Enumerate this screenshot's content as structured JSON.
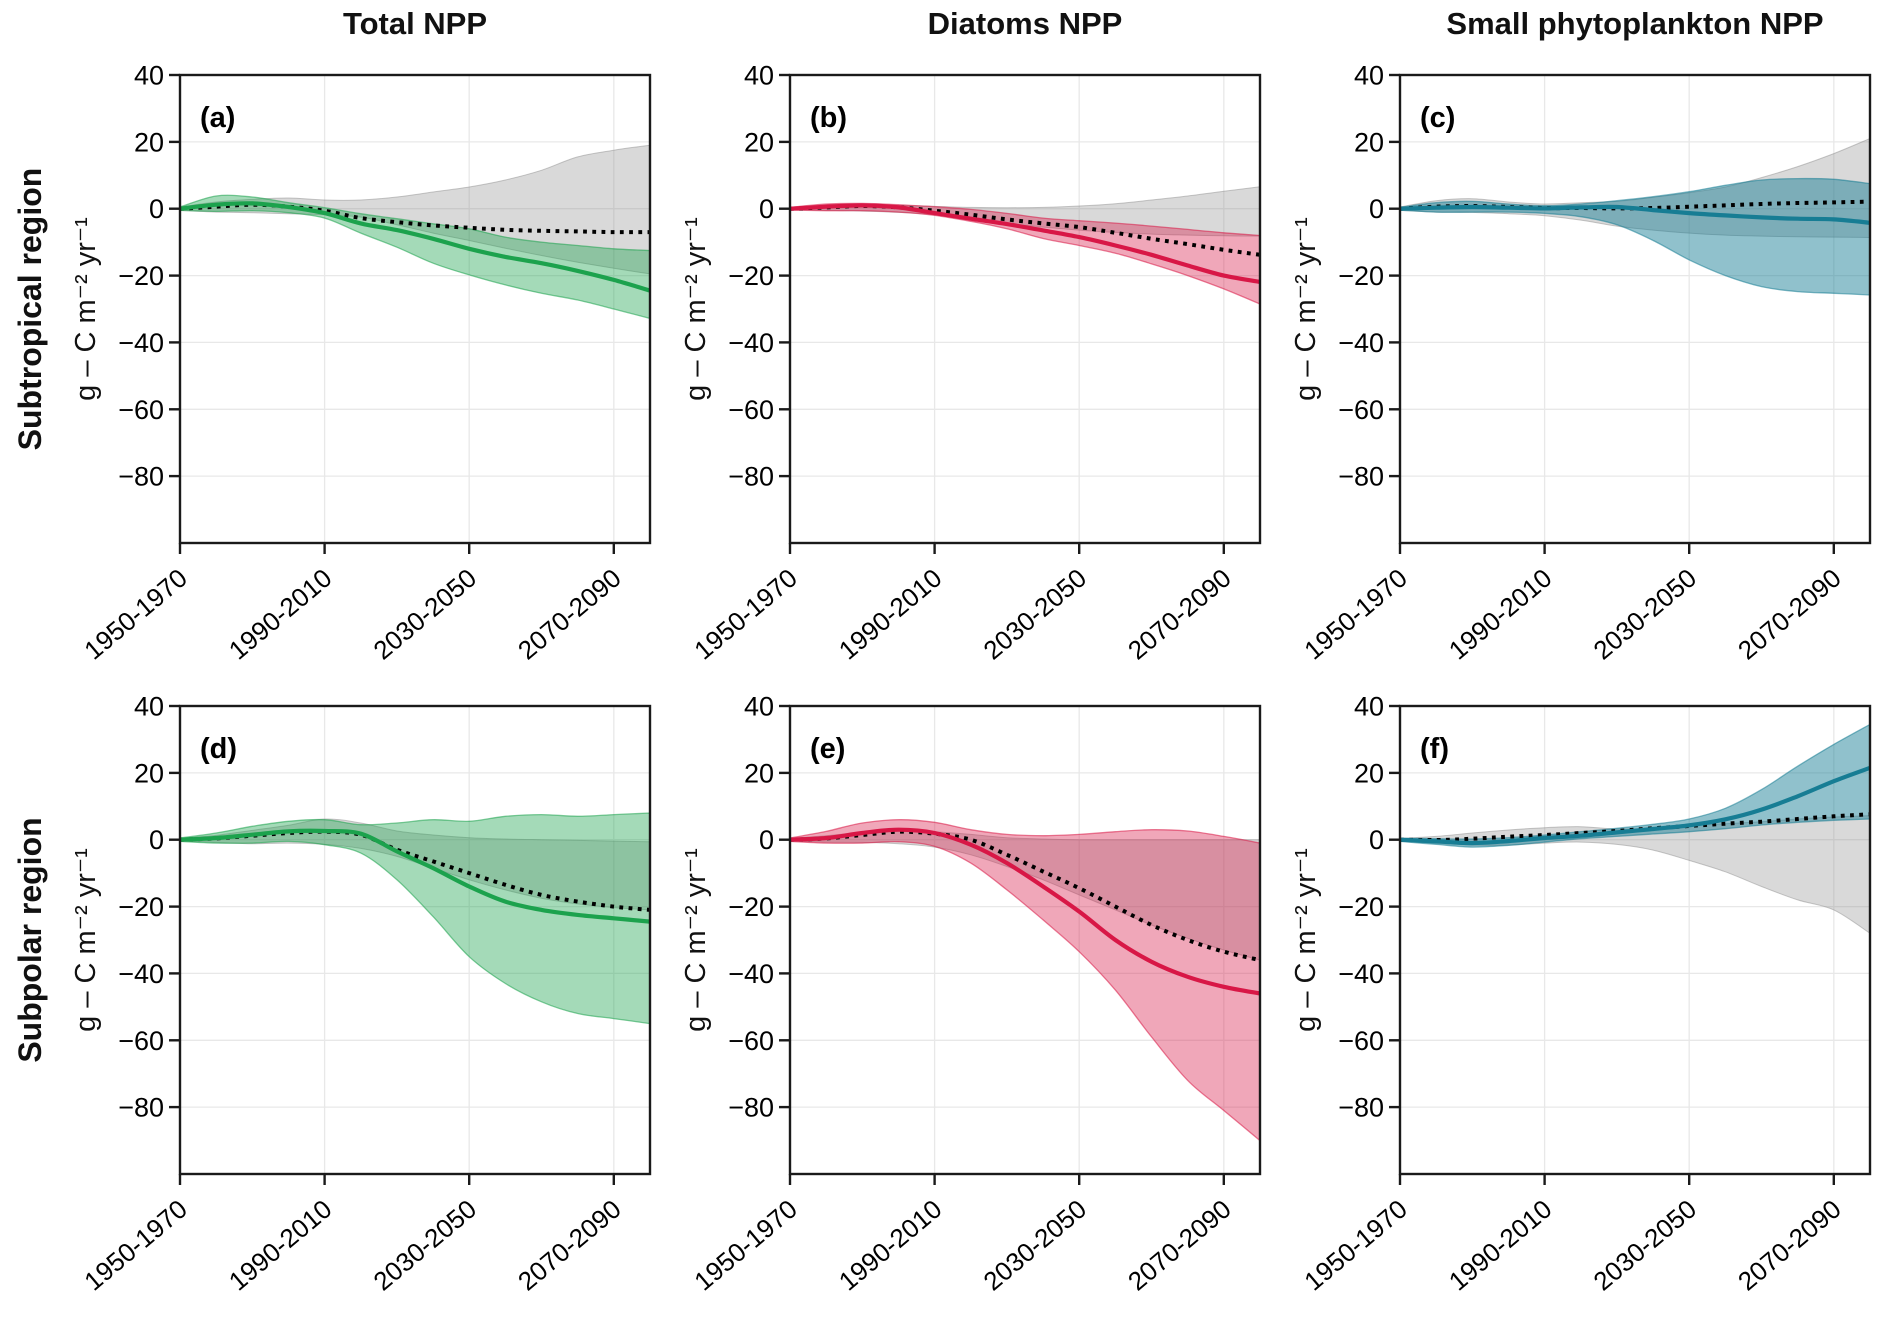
{
  "figure": {
    "column_titles": [
      "Total NPP",
      "Diatoms NPP",
      "Small phytoplankton NPP"
    ],
    "row_labels": [
      "Subtropical region",
      "Subpolar region"
    ],
    "y_axis_label": "g – C m⁻² yr⁻¹"
  },
  "axes": {
    "x_years": [
      1960,
      1970,
      1980,
      1990,
      2000,
      2010,
      2020,
      2030,
      2040,
      2050,
      2060,
      2070,
      2080,
      2090
    ],
    "x_ticks": [
      1960,
      2000,
      2040,
      2080
    ],
    "x_tick_labels": [
      "1950-1970",
      "1990-2010",
      "2030-2050",
      "2070-2090"
    ],
    "xlim": [
      1960,
      2090
    ],
    "ylim": [
      -100,
      40
    ],
    "y_ticks": [
      40,
      20,
      0,
      -20,
      -40,
      -60,
      -80
    ],
    "grid": true
  },
  "style": {
    "grid_color": "#e8e8e8",
    "axis_color": "#1a1a1a",
    "dotted_line_color": "#000000",
    "gray_band_color": "#808080",
    "gray_band_opacity": 0.3,
    "green": "#1CA24D",
    "red": "#D81746",
    "teal": "#177D94"
  },
  "chart_data": [
    {
      "type": "line",
      "panel_label": "(a)",
      "row": "Subtropical region",
      "column": "Total NPP",
      "series": [
        {
          "name": "ensemble-mean-solid",
          "color": "#1CA24D",
          "band_opacity": 0.4,
          "line": [
            0,
            1.2,
            1.6,
            0.5,
            -1.3,
            -4.4,
            -6.4,
            -9,
            -12,
            -14.4,
            -16.3,
            -18.6,
            -21.3,
            -24.5
          ],
          "band_high": [
            0.5,
            3.8,
            3.5,
            1.8,
            0.3,
            -1.5,
            -3,
            -4.5,
            -6,
            -8.5,
            -10,
            -11,
            -12,
            -12.5
          ],
          "band_low": [
            -0.5,
            -0.8,
            -0.6,
            -1.2,
            -2.8,
            -7.3,
            -11.5,
            -16.3,
            -19.8,
            -22.8,
            -25.3,
            -27.3,
            -30,
            -32.8
          ]
        },
        {
          "name": "reference-dotted",
          "style": "dotted",
          "color": "#000000",
          "band_color": "#808080",
          "band_opacity": 0.3,
          "line": [
            0,
            0.6,
            1.2,
            0.6,
            -0.6,
            -2.8,
            -4,
            -5,
            -5.7,
            -6.3,
            -6.6,
            -6.8,
            -7,
            -7
          ],
          "band_high": [
            0.5,
            2,
            2.8,
            3.2,
            2.6,
            2.6,
            3.5,
            5,
            6.5,
            8.6,
            11.5,
            15.5,
            17.5,
            19
          ],
          "band_low": [
            -0.5,
            -1,
            -1.2,
            -1.5,
            -1.8,
            -2.5,
            -4.8,
            -7.3,
            -9.5,
            -11.8,
            -14,
            -16,
            -17.8,
            -19.5
          ]
        }
      ]
    },
    {
      "type": "line",
      "panel_label": "(b)",
      "row": "Subtropical region",
      "column": "Diatoms NPP",
      "series": [
        {
          "name": "ensemble-mean-solid",
          "color": "#D81746",
          "band_opacity": 0.38,
          "line": [
            0,
            0.6,
            1,
            0.4,
            -1.3,
            -3,
            -4.6,
            -6.5,
            -8.5,
            -11,
            -13.8,
            -17,
            -20,
            -21.9
          ],
          "band_high": [
            0.4,
            1.4,
            1.6,
            1.2,
            0.6,
            -0.2,
            -1.4,
            -2.8,
            -3.6,
            -4.3,
            -5.2,
            -6.2,
            -7.2,
            -8
          ],
          "band_low": [
            -0.4,
            -0.6,
            -0.6,
            -1,
            -2,
            -3.8,
            -6,
            -8.9,
            -11,
            -13.3,
            -16.5,
            -20,
            -24,
            -28.5
          ]
        },
        {
          "name": "reference-dotted",
          "style": "dotted",
          "color": "#000000",
          "band_color": "#808080",
          "band_opacity": 0.3,
          "line": [
            0,
            0.4,
            0.8,
            0.4,
            -0.6,
            -1.8,
            -3.2,
            -4.4,
            -5.5,
            -7.2,
            -9,
            -10.6,
            -12.3,
            -13.8
          ],
          "band_high": [
            0.3,
            0.9,
            1.1,
            1,
            0.7,
            0.4,
            0.3,
            0.4,
            0.8,
            1.5,
            2.6,
            3.8,
            5.2,
            6.6
          ],
          "band_low": [
            -0.3,
            -0.5,
            -0.7,
            -1.1,
            -1.8,
            -3,
            -4.4,
            -5.5,
            -6.4,
            -7.1,
            -7.6,
            -7.9,
            -8.1,
            -8.2
          ]
        }
      ]
    },
    {
      "type": "line",
      "panel_label": "(c)",
      "row": "Subtropical region",
      "column": "Small phytoplankton NPP",
      "series": [
        {
          "name": "ensemble-mean-solid",
          "color": "#177D94",
          "band_opacity": 0.48,
          "line": [
            0,
            0.3,
            0.5,
            0.3,
            0.1,
            0.4,
            0.5,
            -0.4,
            -1.3,
            -2,
            -2.6,
            -3,
            -3.2,
            -4.2
          ],
          "band_high": [
            0.4,
            1.8,
            2.2,
            1.4,
            0.9,
            1.4,
            2.4,
            3.6,
            5.1,
            7,
            8.6,
            9,
            8.8,
            7.5
          ],
          "band_low": [
            -0.4,
            -1,
            -1,
            -1,
            -1.4,
            -2.4,
            -4.8,
            -9.5,
            -15.3,
            -20,
            -23.3,
            -24.8,
            -25.3,
            -25.8
          ]
        },
        {
          "name": "reference-dotted",
          "style": "dotted",
          "color": "#000000",
          "band_color": "#808080",
          "band_opacity": 0.3,
          "line": [
            0,
            0.6,
            0.8,
            0.5,
            0.2,
            0.2,
            0.1,
            0.2,
            0.6,
            1,
            1.4,
            1.7,
            1.9,
            2.1
          ],
          "band_high": [
            0.5,
            2.4,
            3,
            2,
            1.4,
            1.8,
            2.2,
            3.4,
            4.8,
            6.5,
            9.3,
            12.6,
            16.5,
            21
          ],
          "band_low": [
            -0.5,
            -1,
            -1.1,
            -1.5,
            -2.1,
            -3.4,
            -5.2,
            -6.4,
            -7.3,
            -7.9,
            -8.2,
            -8.4,
            -8.5,
            -8.6
          ]
        }
      ]
    },
    {
      "type": "line",
      "panel_label": "(d)",
      "row": "Subpolar region",
      "column": "Total NPP",
      "series": [
        {
          "name": "ensemble-mean-solid",
          "color": "#1CA24D",
          "band_opacity": 0.4,
          "line": [
            0,
            0.5,
            1.5,
            2.5,
            2.6,
            1.8,
            -3.5,
            -8.5,
            -14,
            -18.5,
            -21,
            -22.5,
            -23.5,
            -24.5
          ],
          "band_high": [
            0.5,
            2,
            4,
            5.5,
            6,
            4.5,
            5,
            6,
            5.5,
            7,
            7.5,
            7,
            7.5,
            8
          ],
          "band_low": [
            -0.5,
            -1,
            -1,
            -0.5,
            -1.5,
            -4,
            -12,
            -23,
            -35,
            -43,
            -48.5,
            -52,
            -53.5,
            -55
          ]
        },
        {
          "name": "reference-dotted",
          "style": "dotted",
          "color": "#000000",
          "band_color": "#808080",
          "band_opacity": 0.3,
          "line": [
            0,
            0.4,
            1.2,
            2,
            2.4,
            1.5,
            -3,
            -6.5,
            -10,
            -13.5,
            -16.5,
            -18.5,
            -20,
            -21
          ],
          "band_high": [
            0.4,
            1.3,
            2.8,
            4.3,
            6.2,
            5,
            2.6,
            1.4,
            0.6,
            0.2,
            0,
            -0.2,
            -0.4,
            -0.6
          ],
          "band_low": [
            -0.4,
            -0.8,
            -1.2,
            -1,
            -1.4,
            -2.6,
            -5,
            -8.5,
            -12,
            -15,
            -17.5,
            -19.2,
            -20.3,
            -21
          ]
        }
      ]
    },
    {
      "type": "line",
      "panel_label": "(e)",
      "row": "Subpolar region",
      "column": "Diatoms NPP",
      "series": [
        {
          "name": "ensemble-mean-solid",
          "color": "#D81746",
          "band_opacity": 0.38,
          "line": [
            0,
            0.5,
            2,
            3,
            2,
            -1.5,
            -7,
            -14,
            -21.5,
            -30,
            -36.5,
            -41,
            -44,
            -46
          ],
          "band_high": [
            0.5,
            2.5,
            5,
            6,
            5.2,
            3,
            1.6,
            1.2,
            1.6,
            2.4,
            3,
            2.6,
            1,
            -1
          ],
          "band_low": [
            -0.5,
            -1,
            -1,
            -0.6,
            -2,
            -7,
            -15,
            -24,
            -33.5,
            -45,
            -59,
            -72,
            -81,
            -90
          ]
        },
        {
          "name": "reference-dotted",
          "style": "dotted",
          "color": "#000000",
          "band_color": "#808080",
          "band_opacity": 0.3,
          "line": [
            0,
            0.4,
            1.4,
            2.4,
            1.8,
            0,
            -4.5,
            -9.5,
            -14.5,
            -20,
            -25.5,
            -30,
            -33.5,
            -36
          ],
          "band_high": [
            0.4,
            1.2,
            2.2,
            3,
            2.4,
            1.6,
            0.6,
            0.2,
            0,
            0,
            0,
            0,
            0,
            0
          ],
          "band_low": [
            -0.4,
            -0.7,
            -0.8,
            -1.2,
            -2.2,
            -4.5,
            -8,
            -12,
            -16.5,
            -21,
            -25.5,
            -29.5,
            -33,
            -36
          ]
        }
      ]
    },
    {
      "type": "line",
      "panel_label": "(f)",
      "row": "Subpolar region",
      "column": "Small phytoplankton NPP",
      "series": [
        {
          "name": "ensemble-mean-solid",
          "color": "#177D94",
          "band_opacity": 0.48,
          "line": [
            0,
            -0.5,
            -1,
            -0.4,
            0.5,
            1.2,
            2.2,
            3.2,
            4.3,
            6.1,
            9,
            13,
            17.5,
            21.5
          ],
          "band_high": [
            0.4,
            0.3,
            0.2,
            0.6,
            1.4,
            2.4,
            3.4,
            4.6,
            6.2,
            9.4,
            15,
            22,
            28.5,
            34.5
          ],
          "band_low": [
            -0.5,
            -1.4,
            -2.2,
            -1.7,
            -0.7,
            0.3,
            1,
            1.7,
            2.4,
            3.3,
            4.4,
            5.2,
            5.8,
            6.2
          ]
        },
        {
          "name": "reference-dotted",
          "style": "dotted",
          "color": "#000000",
          "band_color": "#808080",
          "band_opacity": 0.3,
          "line": [
            0,
            -0.1,
            0.3,
            0.9,
            1.4,
            2,
            2.6,
            3.4,
            4.1,
            4.8,
            5.4,
            6.2,
            7,
            7.6
          ],
          "band_high": [
            0.4,
            1,
            2,
            2.9,
            3.6,
            3.9,
            3.2,
            3.4,
            4.2,
            4.8,
            5.4,
            6.2,
            6.8,
            7.2
          ],
          "band_low": [
            -0.5,
            -1,
            -1.6,
            -1.6,
            -1,
            -0.7,
            -1.4,
            -3.1,
            -6.2,
            -9.6,
            -14,
            -18,
            -21,
            -28
          ]
        }
      ]
    }
  ]
}
